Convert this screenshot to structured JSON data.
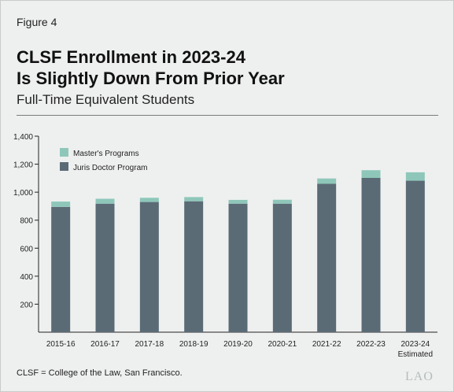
{
  "figure_label": "Figure 4",
  "title_line1": "CLSF Enrollment in 2023-24",
  "title_line2": "Is Slightly Down From Prior Year",
  "subtitle": "Full-Time Equivalent Students",
  "footnote": "CLSF = College of the Law, San Francisco.",
  "logo": "LAO",
  "colors": {
    "jd": "#5b6b76",
    "masters": "#8ec7ba",
    "axis": "#222222",
    "background": "#eef0ef"
  },
  "chart_data": {
    "type": "bar",
    "stacked": true,
    "categories": [
      "2015-16",
      "2016-17",
      "2017-18",
      "2018-19",
      "2019-20",
      "2020-21",
      "2021-22",
      "2022-23",
      "2023-24"
    ],
    "category_sublabels": [
      "",
      "",
      "",
      "",
      "",
      "",
      "",
      "",
      "Estimated"
    ],
    "series": [
      {
        "name": "Juris Doctor Program",
        "values": [
          895,
          918,
          930,
          935,
          918,
          918,
          1060,
          1102,
          1082
        ]
      },
      {
        "name": "Master's Programs",
        "values": [
          38,
          35,
          30,
          30,
          27,
          28,
          38,
          55,
          60
        ]
      }
    ],
    "ylim": [
      0,
      1400
    ],
    "yticks": [
      "200",
      "400",
      "600",
      "800",
      "1,000",
      "1,200",
      "1,400"
    ],
    "grid": false,
    "legend_position": "top-left"
  }
}
